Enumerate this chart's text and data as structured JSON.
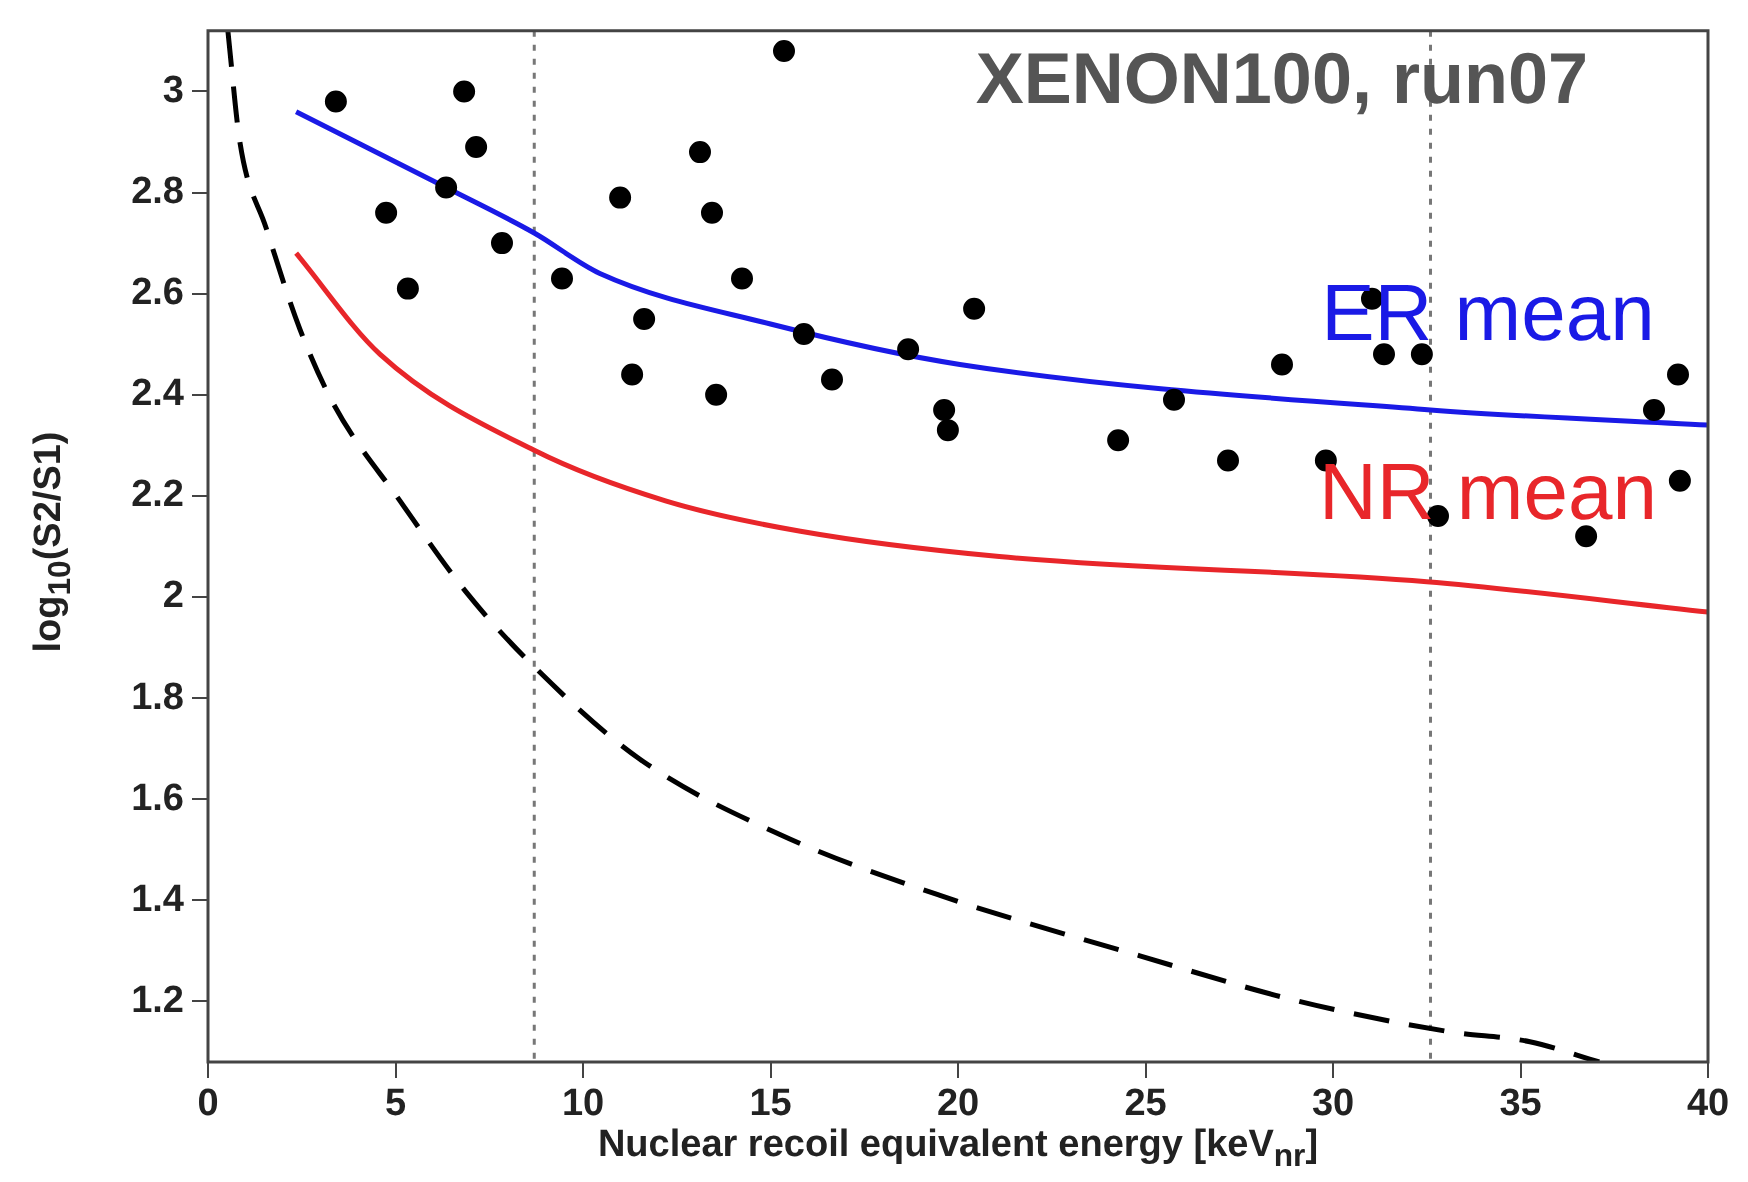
{
  "chart_data": {
    "type": "scatter",
    "title": "XENON100, run07",
    "xlabel": "Nuclear recoil equivalent energy [keV$_{nr}$]",
    "ylabel": "log$_{10}$(S2/S1)",
    "xlim": [
      0,
      40
    ],
    "xticks": [
      0,
      5,
      10,
      15,
      20,
      25,
      30,
      35,
      40
    ],
    "ylim": [
      1.08,
      3.12
    ],
    "yticks": [
      1.2,
      1.4,
      1.6,
      1.8,
      2,
      2.2,
      2.4,
      2.6,
      2.8,
      3
    ],
    "grid": false,
    "legend": false,
    "ref_lines": [
      {
        "axis": "x",
        "value": 8.7,
        "color": "#777777",
        "line_style": "dotted"
      },
      {
        "axis": "x",
        "value": 32.6,
        "color": "#777777",
        "line_style": "dotted"
      }
    ],
    "series": [
      {
        "type": "scatter",
        "color": "#000000",
        "marker": "circle",
        "x": [
          3.41,
          6.83,
          7.15,
          4.75,
          6.35,
          7.84,
          5.33,
          9.44,
          10.99,
          11.63,
          11.31,
          13.12,
          13.44,
          14.24,
          13.55,
          15.36,
          15.89,
          16.64,
          18.67,
          19.63,
          19.73,
          20.43,
          24.27,
          25.76,
          27.2,
          28.64,
          29.81,
          31.04,
          31.36,
          32.37,
          32.8,
          36.75,
          38.56,
          39.2,
          39.25
        ],
        "values": [
          2.98,
          3.0,
          2.89,
          2.76,
          2.81,
          2.7,
          2.61,
          2.63,
          2.79,
          2.55,
          2.44,
          2.88,
          2.76,
          2.63,
          2.4,
          3.08,
          2.52,
          2.43,
          2.49,
          2.37,
          2.33,
          2.57,
          2.31,
          2.39,
          2.27,
          2.46,
          2.27,
          2.59,
          2.48,
          2.48,
          2.16,
          2.12,
          2.37,
          2.44,
          2.23
        ]
      },
      {
        "type": "line",
        "name": "ER mean",
        "color": "#1a1ae6",
        "marker": "none",
        "line_style": "solid",
        "x": [
          2.35,
          6.35,
          8.7,
          10.45,
          15,
          20.05,
          32.6,
          40
        ],
        "values": [
          2.96,
          2.81,
          2.72,
          2.64,
          2.54,
          2.46,
          2.37,
          2.34
        ]
      },
      {
        "type": "line",
        "name": "NR mean",
        "color": "#e8262a",
        "marker": "none",
        "line_style": "solid",
        "x": [
          2.35,
          4.59,
          8.7,
          12.2,
          15.8,
          21.1,
          32.5,
          40
        ],
        "values": [
          2.68,
          2.48,
          2.29,
          2.19,
          2.13,
          2.08,
          2.03,
          1.97
        ]
      },
      {
        "type": "line",
        "color": "#000000",
        "marker": "none",
        "line_style": "dashed",
        "x": [
          0.53,
          0.85,
          1.55,
          2.45,
          3.36,
          5.12,
          6.88,
          8.59,
          11.5,
          15.25,
          19.5,
          24.85,
          29.1,
          33.1,
          35.25,
          37.1
        ],
        "values": [
          3.12,
          2.9,
          2.73,
          2.53,
          2.38,
          2.19,
          2.01,
          1.87,
          1.68,
          1.53,
          1.41,
          1.29,
          1.2,
          1.14,
          1.12,
          1.08
        ]
      }
    ]
  }
}
